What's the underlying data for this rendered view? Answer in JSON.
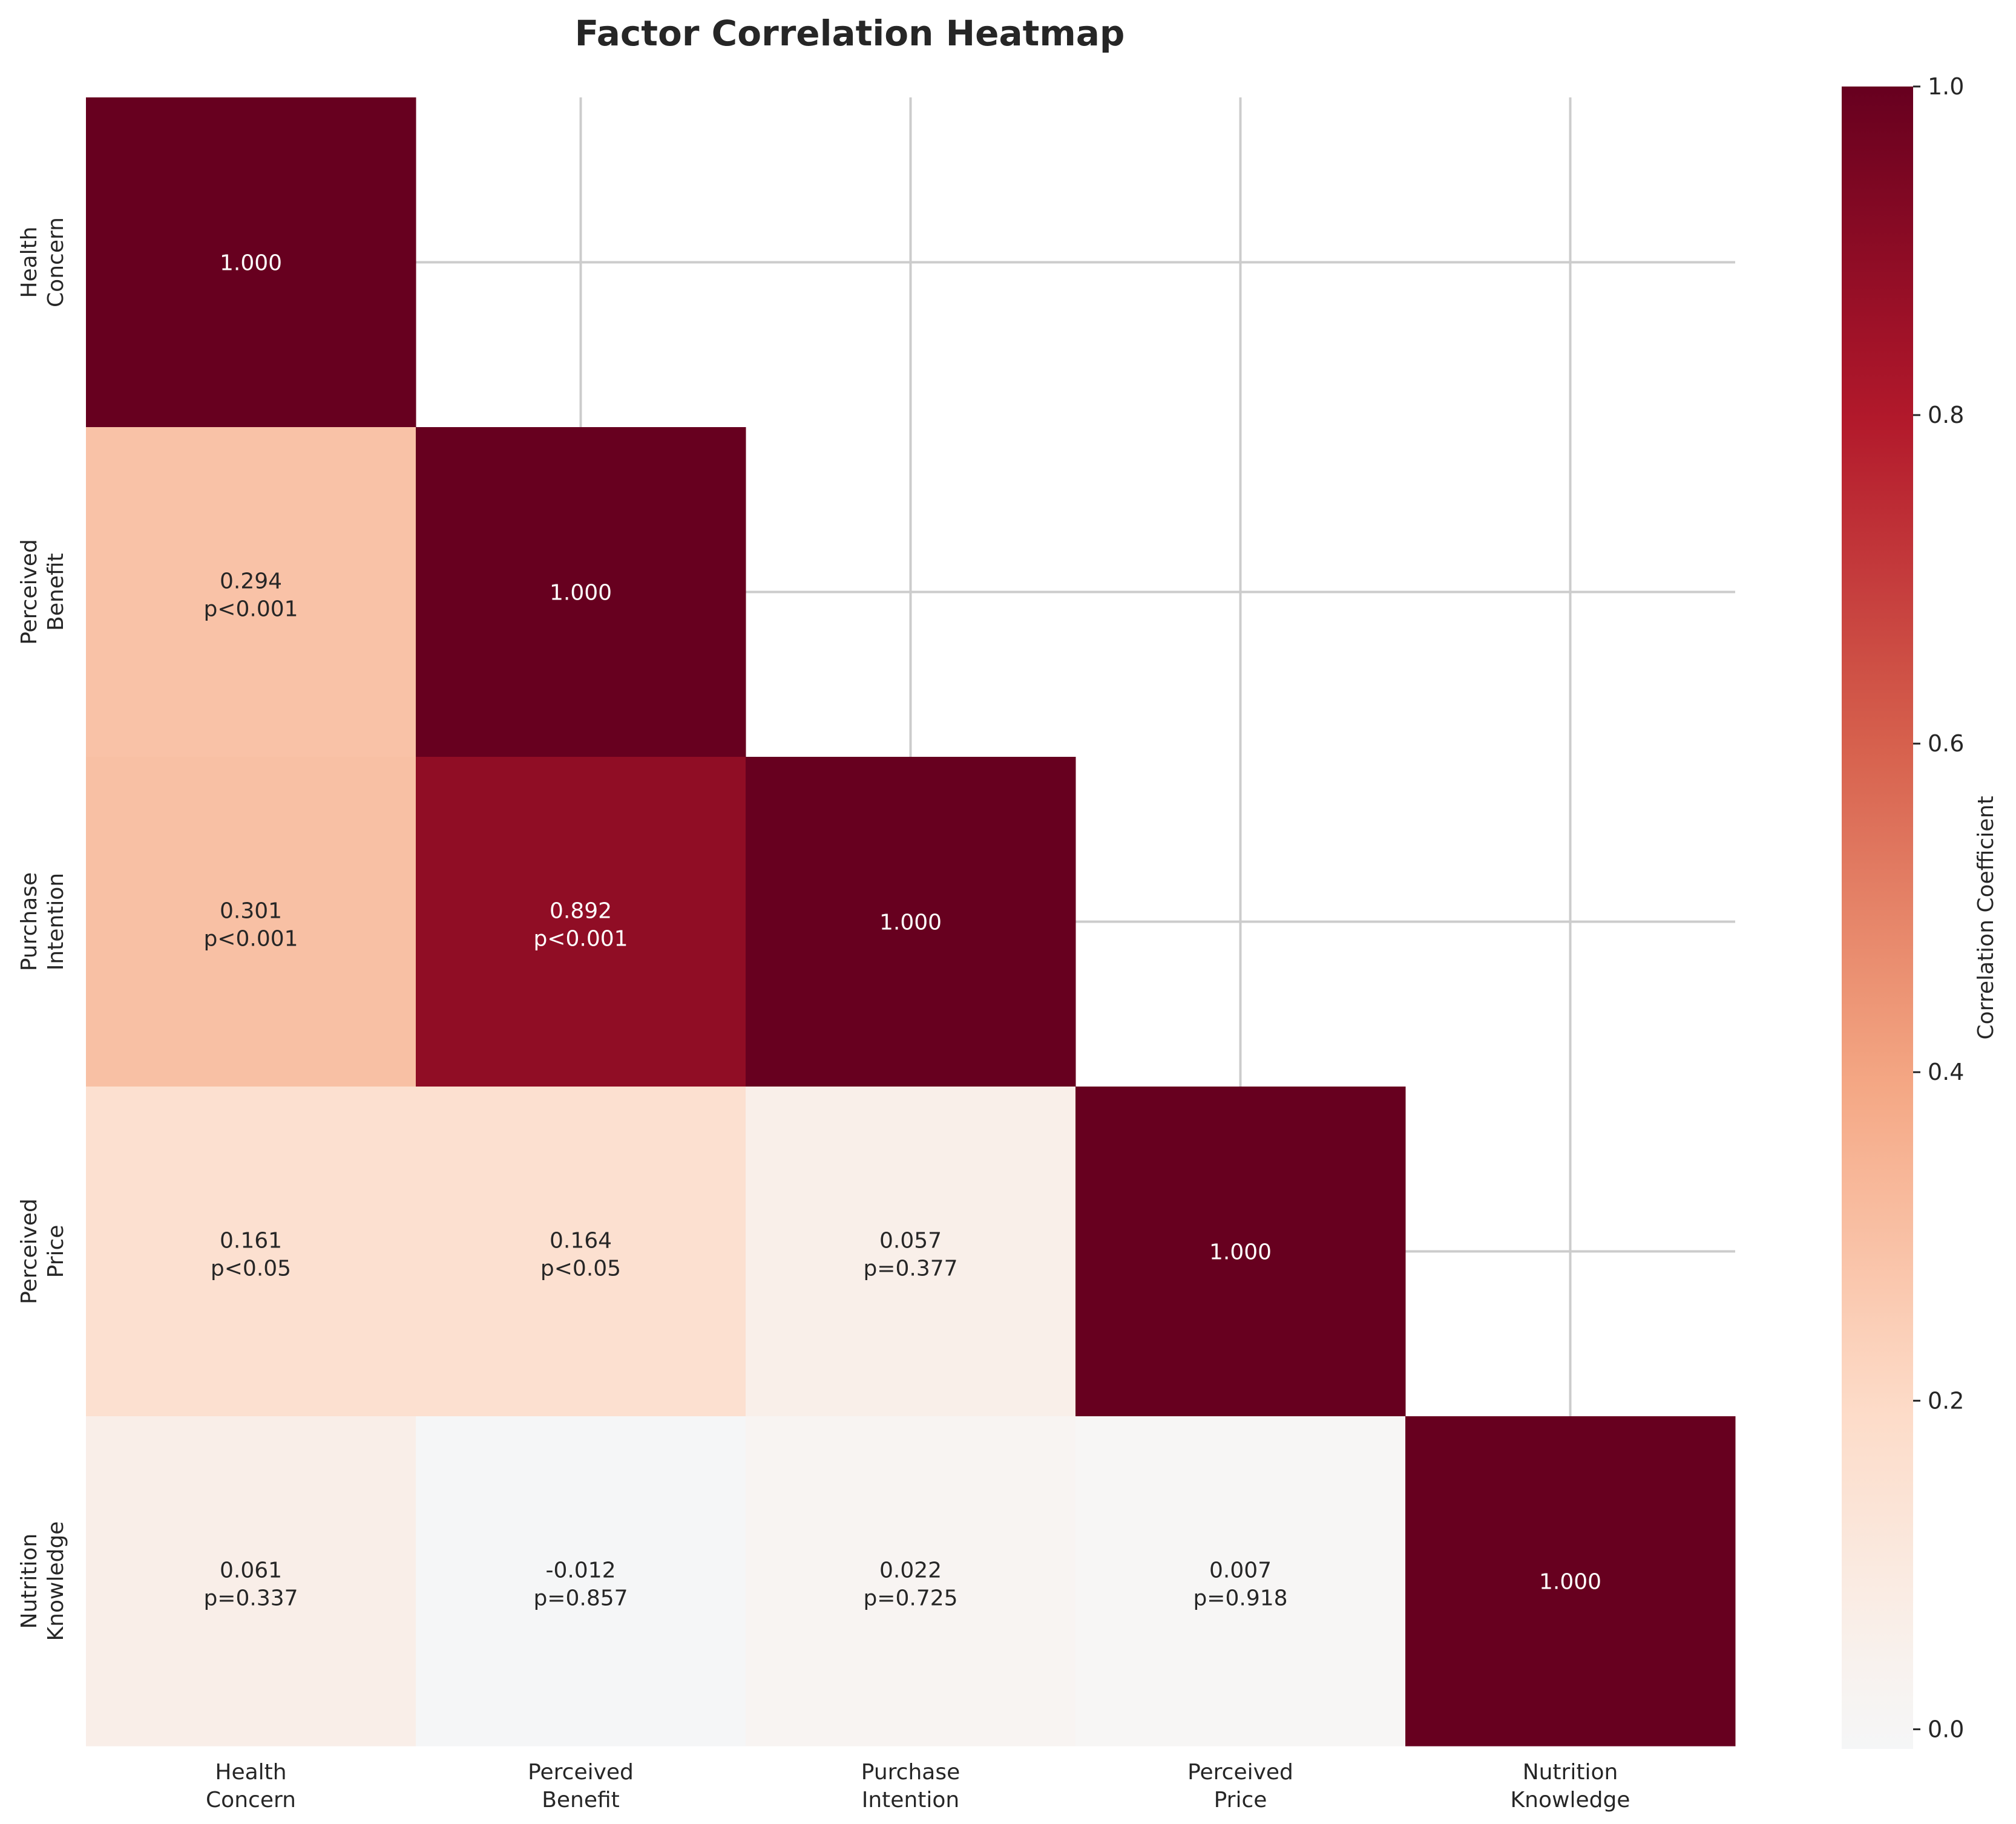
{
  "chart_data": {
    "type": "heatmap",
    "title": "Factor Correlation Heatmap",
    "mask": "upper-triangle",
    "categories": [
      [
        "Health",
        "Concern"
      ],
      [
        "Perceived",
        "Benefit"
      ],
      [
        "Purchase",
        "Intention"
      ],
      [
        "Perceived",
        "Price"
      ],
      [
        "Nutrition",
        "Knowledge"
      ]
    ],
    "matrix": [
      [
        1.0,
        null,
        null,
        null,
        null
      ],
      [
        0.294,
        1.0,
        null,
        null,
        null
      ],
      [
        0.301,
        0.892,
        1.0,
        null,
        null
      ],
      [
        0.161,
        0.164,
        0.057,
        1.0,
        null
      ],
      [
        0.061,
        -0.012,
        0.022,
        0.007,
        1.0
      ]
    ],
    "p_values": [
      [
        "",
        "",
        "",
        "",
        ""
      ],
      [
        "p<0.001",
        "",
        "",
        "",
        ""
      ],
      [
        "p<0.001",
        "p<0.001",
        "",
        "",
        ""
      ],
      [
        "p<0.05",
        "p<0.05",
        "p=0.377",
        "",
        ""
      ],
      [
        "p=0.337",
        "p=0.857",
        "p=0.725",
        "p=0.918",
        ""
      ]
    ],
    "value_labels": [
      [
        "1.000",
        "",
        "",
        "",
        ""
      ],
      [
        "0.294",
        "1.000",
        "",
        "",
        ""
      ],
      [
        "0.301",
        "0.892",
        "1.000",
        "",
        ""
      ],
      [
        "0.161",
        "0.164",
        "0.057",
        "1.000",
        ""
      ],
      [
        "0.061",
        "-0.012",
        "0.022",
        "0.007",
        "1.000"
      ]
    ],
    "colorbar": {
      "label": "Correlation Coefficient",
      "range": [
        -0.012,
        1.0
      ],
      "ticks": [
        0.0,
        0.2,
        0.4,
        0.6,
        0.8,
        1.0
      ],
      "tick_labels": [
        "0.0",
        "0.2",
        "0.4",
        "0.6",
        "0.8",
        "1.0"
      ],
      "colormap": "RdBu_r"
    },
    "grid": true
  }
}
